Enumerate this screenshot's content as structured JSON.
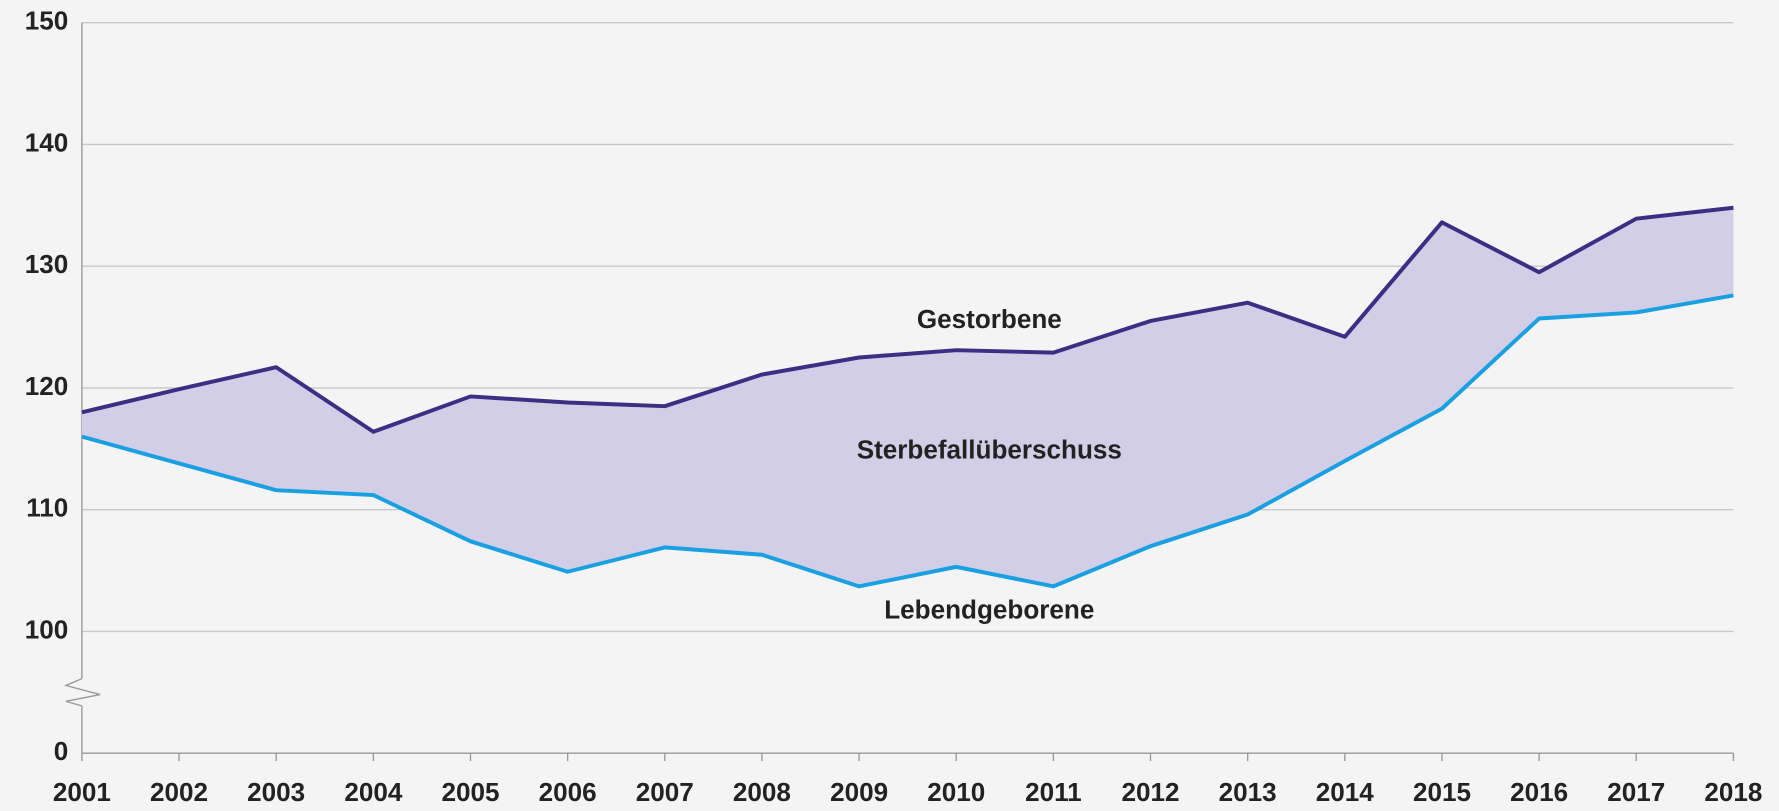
{
  "chart_data": {
    "type": "area_between",
    "categories": [
      "2001",
      "2002",
      "2003",
      "2004",
      "2005",
      "2006",
      "2007",
      "2008",
      "2009",
      "2010",
      "2011",
      "2012",
      "2013",
      "2014",
      "2015",
      "2016",
      "2017",
      "2018"
    ],
    "series": [
      {
        "name": "Gestorbene",
        "color": "#3b2f84",
        "values": [
          118.0,
          119.9,
          121.7,
          116.4,
          119.3,
          118.8,
          118.5,
          121.1,
          122.5,
          123.1,
          122.9,
          125.5,
          127.0,
          124.2,
          133.6,
          129.5,
          133.9,
          134.8
        ]
      },
      {
        "name": "Lebendgeborene",
        "color": "#1aa0e0",
        "values": [
          116.0,
          113.8,
          111.6,
          111.2,
          107.4,
          104.9,
          106.9,
          106.3,
          103.7,
          105.3,
          103.7,
          107.0,
          109.6,
          114.0,
          118.3,
          125.7,
          126.2,
          127.6
        ]
      }
    ],
    "fill_color": "#d2cee7",
    "annotation": "Sterbefallüberschuss",
    "ylim": [
      0,
      150
    ],
    "axis_break": [
      0,
      100
    ],
    "yticks": [
      0,
      100,
      110,
      120,
      130,
      140,
      150
    ],
    "grid": true
  }
}
